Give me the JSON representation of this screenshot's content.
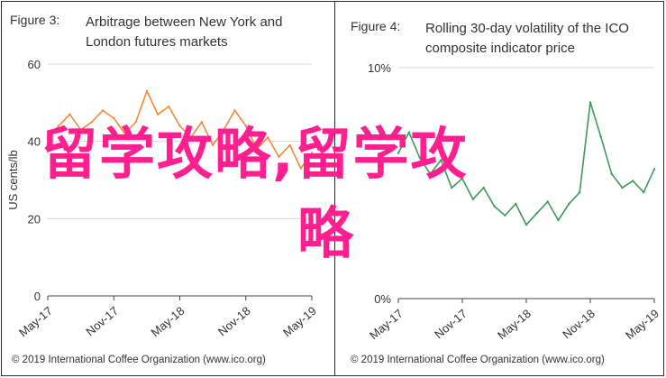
{
  "panels": [
    {
      "figure_label": "Figure 3:",
      "title": "Arbitrage between New York and London futures markets",
      "credit": "© 2019 International Coffee Organization (www.ico.org)"
    },
    {
      "figure_label": "Figure 4:",
      "title": "Rolling 30-day volatility of the ICO composite indicator price",
      "credit": "© 2019 International Coffee Organization (www.ico.org)"
    }
  ],
  "watermark": {
    "line1": "留学攻略,留学攻",
    "line2": "略",
    "color": "#ff1f8e"
  },
  "chart_data": [
    {
      "type": "line",
      "ylabel": "US cents/lb",
      "ylim": [
        0,
        60
      ],
      "yticks": [
        "0",
        "20",
        "40",
        "60"
      ],
      "x_ticks": [
        "May-17",
        "Nov-17",
        "May-18",
        "Nov-18",
        "May-19"
      ],
      "x_range": [
        "2017-05",
        "2019-05"
      ],
      "grid": true,
      "color": "#f08a3c",
      "series": [
        {
          "values": [
            [
              "2017-05",
              41
            ],
            [
              "2017-06",
              44
            ],
            [
              "2017-07",
              47
            ],
            [
              "2017-08",
              43
            ],
            [
              "2017-09",
              45
            ],
            [
              "2017-10",
              48
            ],
            [
              "2017-11",
              46
            ],
            [
              "2017-12",
              42
            ],
            [
              "2018-01",
              45
            ],
            [
              "2018-02",
              53
            ],
            [
              "2018-03",
              47
            ],
            [
              "2018-04",
              49
            ],
            [
              "2018-05",
              44
            ],
            [
              "2018-06",
              41
            ],
            [
              "2018-07",
              45
            ],
            [
              "2018-08",
              39
            ],
            [
              "2018-09",
              43
            ],
            [
              "2018-10",
              48
            ],
            [
              "2018-11",
              44
            ],
            [
              "2018-12",
              38
            ],
            [
              "2019-01",
              41
            ],
            [
              "2019-02",
              36
            ],
            [
              "2019-03",
              39
            ],
            [
              "2019-04",
              33
            ],
            [
              "2019-05",
              37
            ]
          ]
        }
      ]
    },
    {
      "type": "line",
      "ylim": [
        0,
        10
      ],
      "yticks": [
        "0%",
        "10%"
      ],
      "x_ticks": [
        "May-17",
        "Nov-17",
        "May-18",
        "Nov-18",
        "May-19"
      ],
      "x_range": [
        "2017-05",
        "2019-05"
      ],
      "grid": true,
      "color": "#3f9a5c",
      "series": [
        {
          "values": [
            [
              "2017-05",
              6.3
            ],
            [
              "2017-06",
              7.2
            ],
            [
              "2017-07",
              6.1
            ],
            [
              "2017-08",
              5.4
            ],
            [
              "2017-09",
              6.0
            ],
            [
              "2017-10",
              4.8
            ],
            [
              "2017-11",
              5.2
            ],
            [
              "2017-12",
              4.3
            ],
            [
              "2018-01",
              4.8
            ],
            [
              "2018-02",
              4.0
            ],
            [
              "2018-03",
              3.6
            ],
            [
              "2018-04",
              4.1
            ],
            [
              "2018-05",
              3.2
            ],
            [
              "2018-06",
              3.7
            ],
            [
              "2018-07",
              4.2
            ],
            [
              "2018-08",
              3.4
            ],
            [
              "2018-09",
              4.1
            ],
            [
              "2018-10",
              4.6
            ],
            [
              "2018-11",
              8.5
            ],
            [
              "2018-12",
              7.0
            ],
            [
              "2019-01",
              5.4
            ],
            [
              "2019-02",
              4.8
            ],
            [
              "2019-03",
              5.1
            ],
            [
              "2019-04",
              4.6
            ],
            [
              "2019-05",
              5.6
            ]
          ]
        }
      ]
    }
  ]
}
